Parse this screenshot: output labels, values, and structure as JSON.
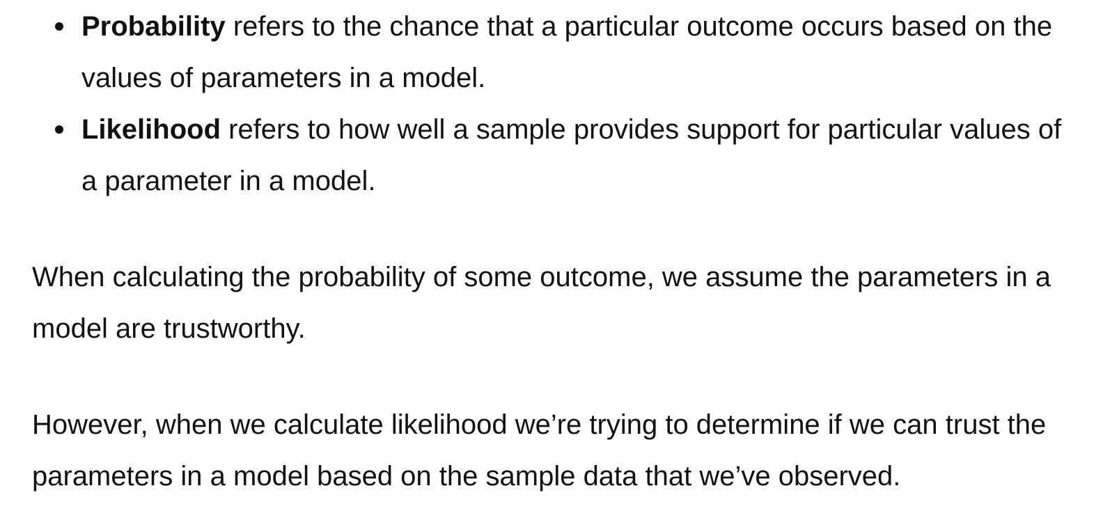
{
  "definitions": [
    {
      "term": "Probability",
      "text": "refers to the chance that a particular outcome occurs based on the values of parameters in a model."
    },
    {
      "term": "Likelihood",
      "text": "refers to how well a sample provides support for particular values of a parameter in a model."
    }
  ],
  "paragraphs": [
    "When calculating the probability of some outcome, we assume the parameters in a model are trustworthy.",
    "However, when we calculate likelihood we’re trying to determine if we can trust the parameters in a model based on the sample data that we’ve observed."
  ]
}
